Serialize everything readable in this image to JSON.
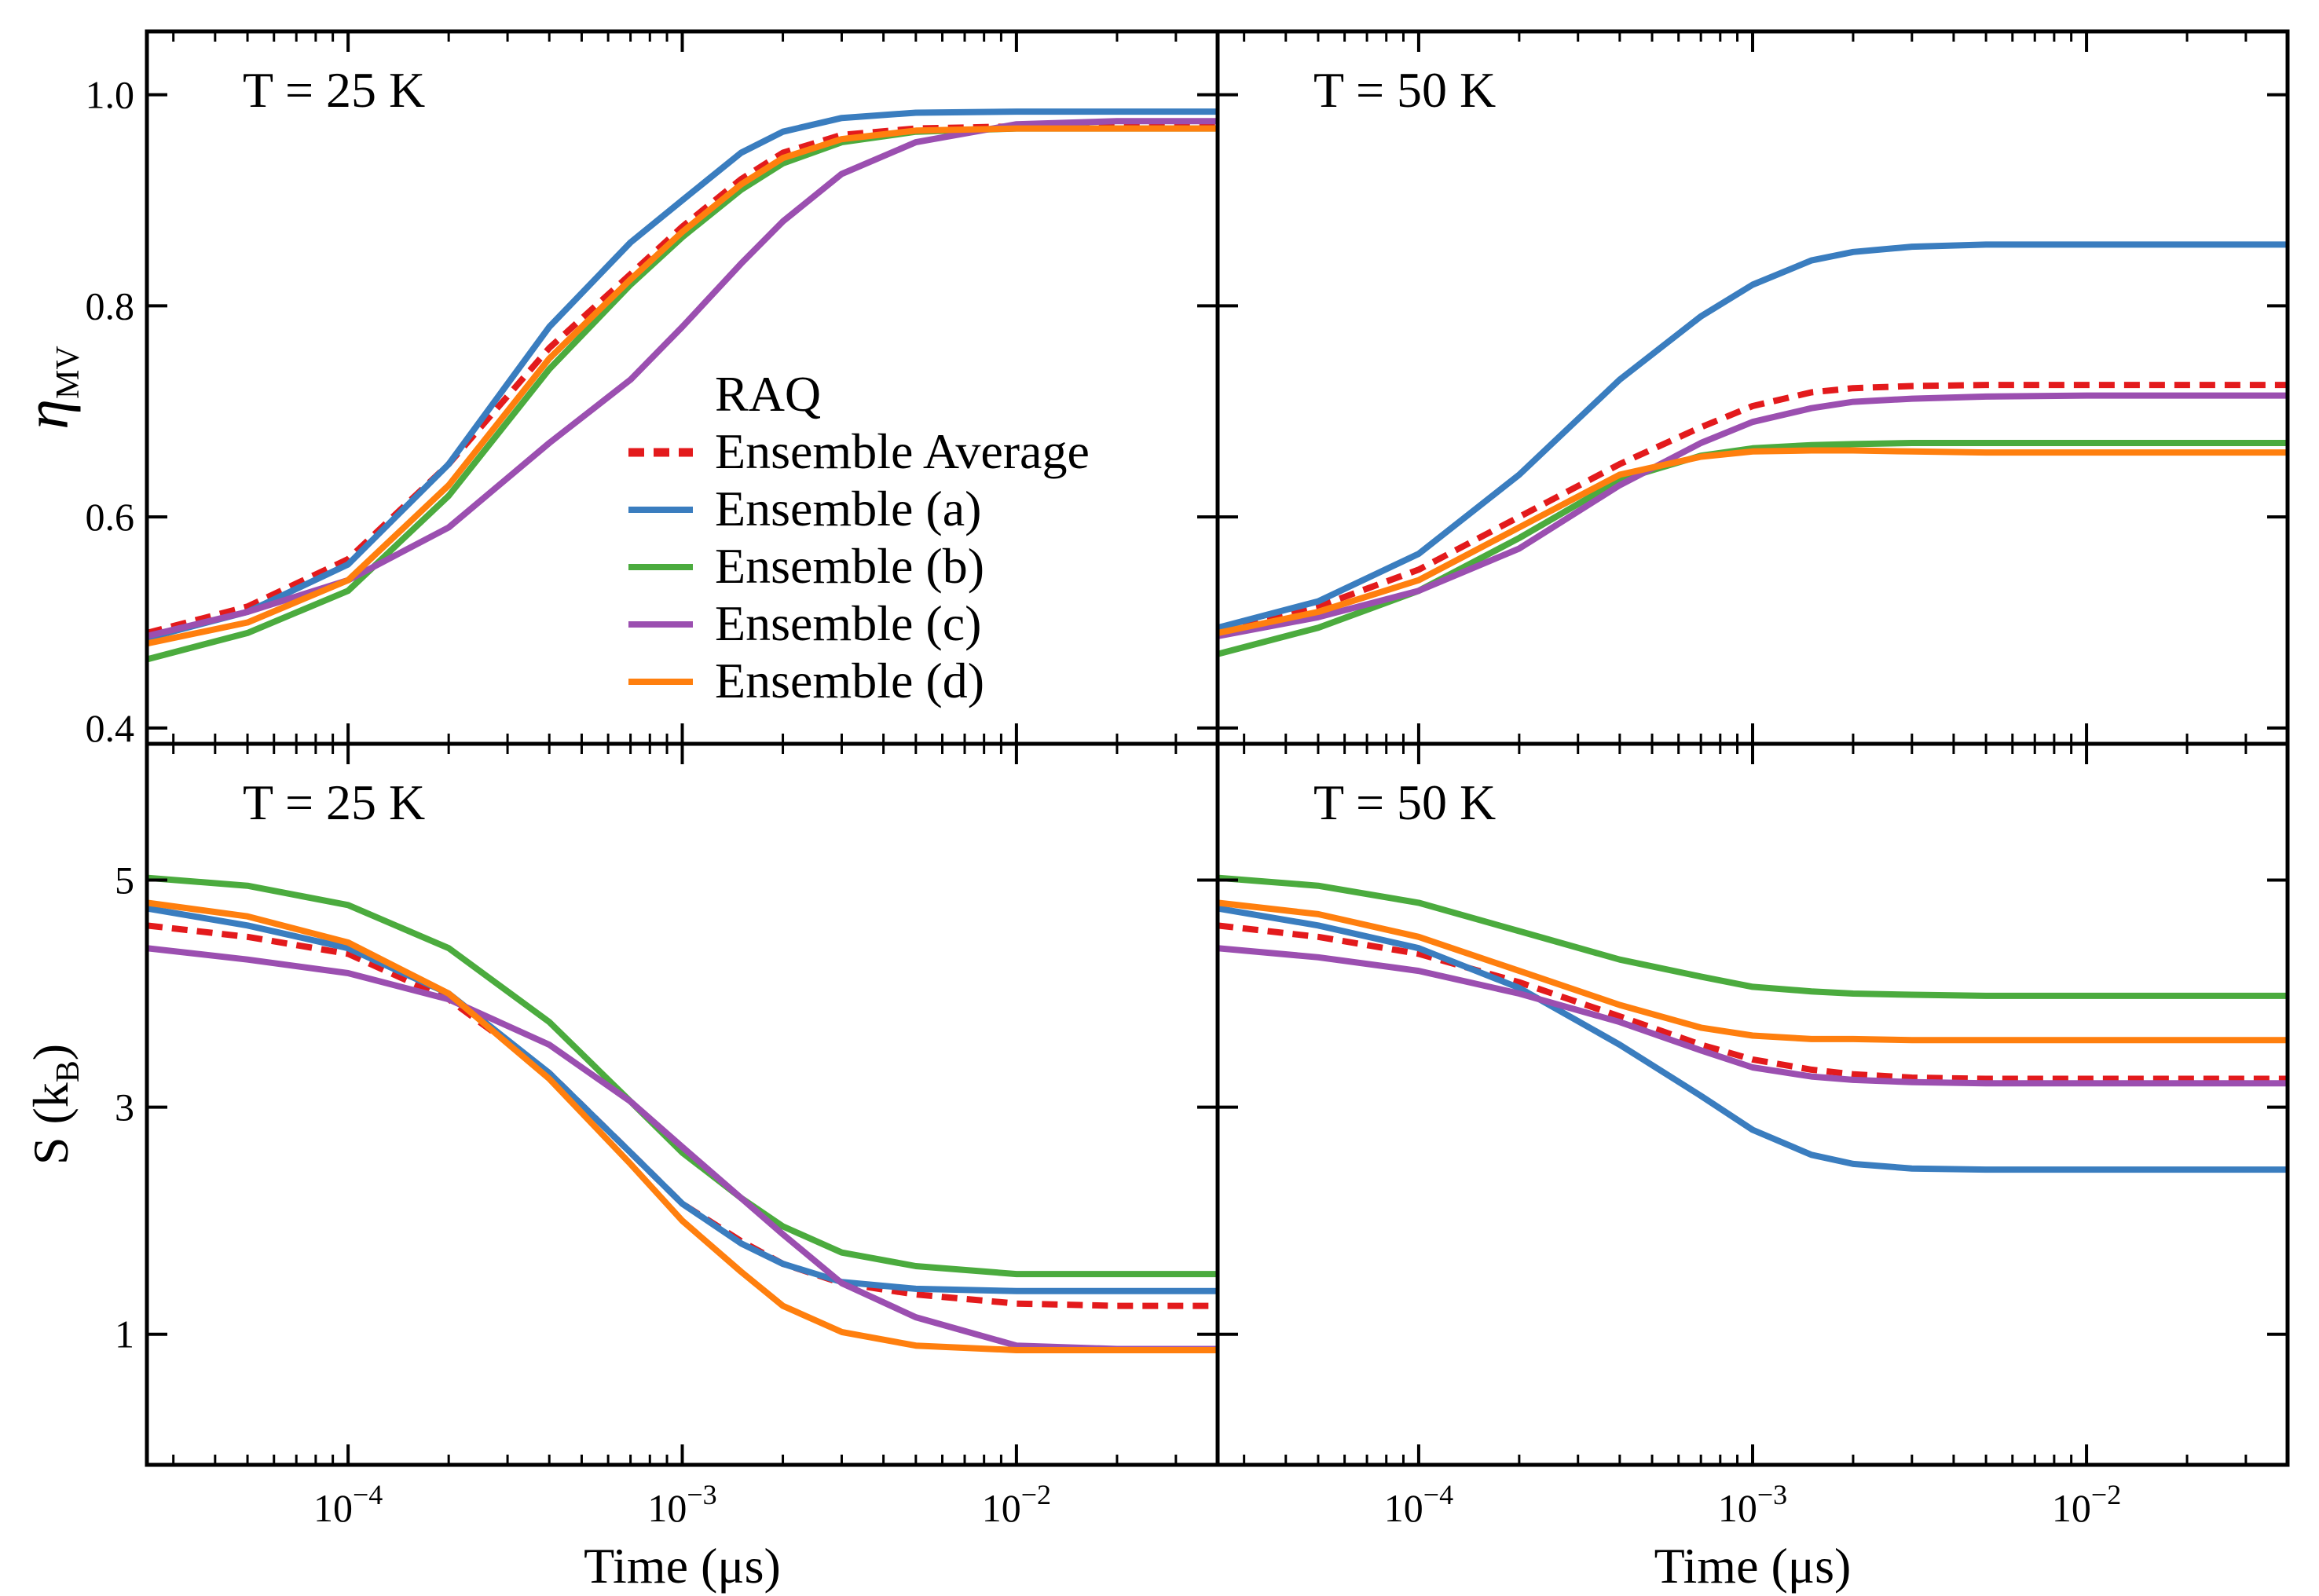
{
  "colors": {
    "Ensemble Average": "#e31a1c",
    "Ensemble (a)": "#3a7dbf",
    "Ensemble (b)": "#4bab3e",
    "Ensemble (c)": "#9b4fb0",
    "Ensemble (d)": "#ff7f0e"
  },
  "legend": {
    "title": "RAQ",
    "entries": [
      "Ensemble Average",
      "Ensemble (a)",
      "Ensemble (b)",
      "Ensemble (c)",
      "Ensemble (d)"
    ],
    "dashed": [
      "Ensemble Average"
    ]
  },
  "chart_data": [
    {
      "type": "line",
      "annotation": "T = 25 K",
      "xlabel": "",
      "ylabel": "η_MV",
      "ylabel_main": "η",
      "ylabel_sub": "MV",
      "xscale": "log",
      "xlim": [
        2.5e-05,
        0.04
      ],
      "ylim": [
        0.385,
        1.06
      ],
      "yticks": [
        0.4,
        0.6,
        0.8,
        1.0
      ],
      "ytick_labels": [
        "0.4",
        "0.6",
        "0.8",
        "1.0"
      ],
      "x": [
        2.5e-05,
        5e-05,
        0.0001,
        0.0002,
        0.0004,
        0.0007,
        0.001,
        0.0015,
        0.002,
        0.003,
        0.005,
        0.01,
        0.02,
        0.04
      ],
      "series": [
        {
          "name": "Ensemble Average",
          "values": [
            0.49,
            0.515,
            0.56,
            0.65,
            0.76,
            0.83,
            0.875,
            0.92,
            0.945,
            0.962,
            0.968,
            0.97,
            0.97,
            0.97
          ]
        },
        {
          "name": "Ensemble (a)",
          "values": [
            0.485,
            0.51,
            0.555,
            0.65,
            0.78,
            0.86,
            0.9,
            0.945,
            0.965,
            0.978,
            0.983,
            0.984,
            0.984,
            0.984
          ]
        },
        {
          "name": "Ensemble (b)",
          "values": [
            0.465,
            0.49,
            0.53,
            0.62,
            0.74,
            0.82,
            0.865,
            0.91,
            0.935,
            0.955,
            0.965,
            0.968,
            0.968,
            0.968
          ]
        },
        {
          "name": "Ensemble (c)",
          "values": [
            0.487,
            0.51,
            0.54,
            0.59,
            0.67,
            0.73,
            0.78,
            0.84,
            0.88,
            0.925,
            0.955,
            0.972,
            0.975,
            0.975
          ]
        },
        {
          "name": "Ensemble (d)",
          "values": [
            0.48,
            0.5,
            0.54,
            0.63,
            0.75,
            0.825,
            0.87,
            0.915,
            0.94,
            0.958,
            0.966,
            0.968,
            0.968,
            0.968
          ]
        }
      ]
    },
    {
      "type": "line",
      "annotation": "T = 50 K",
      "xlabel": "",
      "ylabel": "",
      "xscale": "log",
      "xlim": [
        2.5e-05,
        0.04
      ],
      "ylim": [
        0.385,
        1.06
      ],
      "yticks": [
        0.4,
        0.6,
        0.8,
        1.0
      ],
      "ytick_labels": [],
      "x": [
        2.5e-05,
        5e-05,
        0.0001,
        0.0002,
        0.0004,
        0.0007,
        0.001,
        0.0015,
        0.002,
        0.003,
        0.005,
        0.01,
        0.02,
        0.04
      ],
      "series": [
        {
          "name": "Ensemble Average",
          "values": [
            0.495,
            0.515,
            0.55,
            0.6,
            0.65,
            0.685,
            0.705,
            0.718,
            0.722,
            0.724,
            0.725,
            0.725,
            0.725,
            0.725
          ]
        },
        {
          "name": "Ensemble (a)",
          "values": [
            0.495,
            0.52,
            0.565,
            0.64,
            0.73,
            0.79,
            0.82,
            0.843,
            0.851,
            0.856,
            0.858,
            0.858,
            0.858,
            0.858
          ]
        },
        {
          "name": "Ensemble (b)",
          "values": [
            0.47,
            0.495,
            0.53,
            0.58,
            0.635,
            0.658,
            0.665,
            0.668,
            0.669,
            0.67,
            0.67,
            0.67,
            0.67,
            0.67
          ]
        },
        {
          "name": "Ensemble (c)",
          "values": [
            0.487,
            0.505,
            0.53,
            0.57,
            0.63,
            0.67,
            0.69,
            0.703,
            0.709,
            0.712,
            0.714,
            0.715,
            0.715,
            0.715
          ]
        },
        {
          "name": "Ensemble (d)",
          "values": [
            0.49,
            0.51,
            0.54,
            0.59,
            0.64,
            0.657,
            0.662,
            0.663,
            0.663,
            0.662,
            0.661,
            0.661,
            0.661,
            0.661
          ]
        }
      ]
    },
    {
      "type": "line",
      "annotation": "T = 25 K",
      "xlabel": "Time (μs)",
      "ylabel": "S (k_B)",
      "ylabel_main": "S (k",
      "ylabel_sub": "B",
      "ylabel_end": ")",
      "xscale": "log",
      "xlim": [
        2.5e-05,
        0.04
      ],
      "ylim": [
        -0.15,
        6.2
      ],
      "yticks": [
        1,
        3,
        5
      ],
      "ytick_labels": [
        "1",
        "3",
        "5"
      ],
      "xticks": [
        0.0001,
        0.001,
        0.01
      ],
      "xtick_labels": [
        {
          "base": "10",
          "exp": "−4"
        },
        {
          "base": "10",
          "exp": "−3"
        },
        {
          "base": "10",
          "exp": "−2"
        }
      ],
      "x": [
        2.5e-05,
        5e-05,
        0.0001,
        0.0002,
        0.0004,
        0.0007,
        0.001,
        0.0015,
        0.002,
        0.003,
        0.005,
        0.01,
        0.02,
        0.04
      ],
      "series": [
        {
          "name": "Ensemble Average",
          "values": [
            4.6,
            4.5,
            4.35,
            3.95,
            3.3,
            2.6,
            2.15,
            1.82,
            1.62,
            1.45,
            1.35,
            1.27,
            1.25,
            1.25
          ]
        },
        {
          "name": "Ensemble (a)",
          "values": [
            4.75,
            4.6,
            4.4,
            4.0,
            3.3,
            2.6,
            2.15,
            1.8,
            1.62,
            1.46,
            1.4,
            1.38,
            1.38,
            1.38
          ]
        },
        {
          "name": "Ensemble (b)",
          "values": [
            5.02,
            4.95,
            4.78,
            4.4,
            3.75,
            3.05,
            2.6,
            2.2,
            1.95,
            1.72,
            1.6,
            1.53,
            1.53,
            1.53
          ]
        },
        {
          "name": "Ensemble (c)",
          "values": [
            4.4,
            4.3,
            4.18,
            3.95,
            3.55,
            3.05,
            2.65,
            2.2,
            1.88,
            1.45,
            1.15,
            0.9,
            0.87,
            0.87
          ]
        },
        {
          "name": "Ensemble (d)",
          "values": [
            4.8,
            4.68,
            4.45,
            4.0,
            3.25,
            2.5,
            2.0,
            1.55,
            1.25,
            1.02,
            0.9,
            0.86,
            0.86,
            0.86
          ]
        }
      ]
    },
    {
      "type": "line",
      "annotation": "T = 50 K",
      "xlabel": "Time (μs)",
      "ylabel": "",
      "xscale": "log",
      "xlim": [
        2.5e-05,
        0.04
      ],
      "ylim": [
        -0.15,
        6.2
      ],
      "yticks": [
        1,
        3,
        5
      ],
      "ytick_labels": [],
      "xticks": [
        0.0001,
        0.001,
        0.01
      ],
      "xtick_labels": [
        {
          "base": "10",
          "exp": "−4"
        },
        {
          "base": "10",
          "exp": "−3"
        },
        {
          "base": "10",
          "exp": "−2"
        }
      ],
      "x": [
        2.5e-05,
        5e-05,
        0.0001,
        0.0002,
        0.0004,
        0.0007,
        0.001,
        0.0015,
        0.002,
        0.003,
        0.005,
        0.01,
        0.02,
        0.04
      ],
      "series": [
        {
          "name": "Ensemble Average",
          "values": [
            4.6,
            4.5,
            4.35,
            4.1,
            3.8,
            3.55,
            3.42,
            3.33,
            3.29,
            3.26,
            3.25,
            3.25,
            3.25,
            3.25
          ]
        },
        {
          "name": "Ensemble (a)",
          "values": [
            4.75,
            4.6,
            4.4,
            4.05,
            3.55,
            3.1,
            2.8,
            2.58,
            2.5,
            2.46,
            2.45,
            2.45,
            2.45,
            2.45
          ]
        },
        {
          "name": "Ensemble (b)",
          "values": [
            5.02,
            4.95,
            4.8,
            4.55,
            4.3,
            4.15,
            4.06,
            4.02,
            4.0,
            3.99,
            3.98,
            3.98,
            3.98,
            3.98
          ]
        },
        {
          "name": "Ensemble (c)",
          "values": [
            4.4,
            4.32,
            4.2,
            4.0,
            3.75,
            3.5,
            3.35,
            3.27,
            3.24,
            3.22,
            3.21,
            3.21,
            3.21,
            3.21
          ]
        },
        {
          "name": "Ensemble (d)",
          "values": [
            4.8,
            4.7,
            4.5,
            4.2,
            3.9,
            3.7,
            3.63,
            3.6,
            3.6,
            3.59,
            3.59,
            3.59,
            3.59,
            3.59
          ]
        }
      ]
    }
  ]
}
